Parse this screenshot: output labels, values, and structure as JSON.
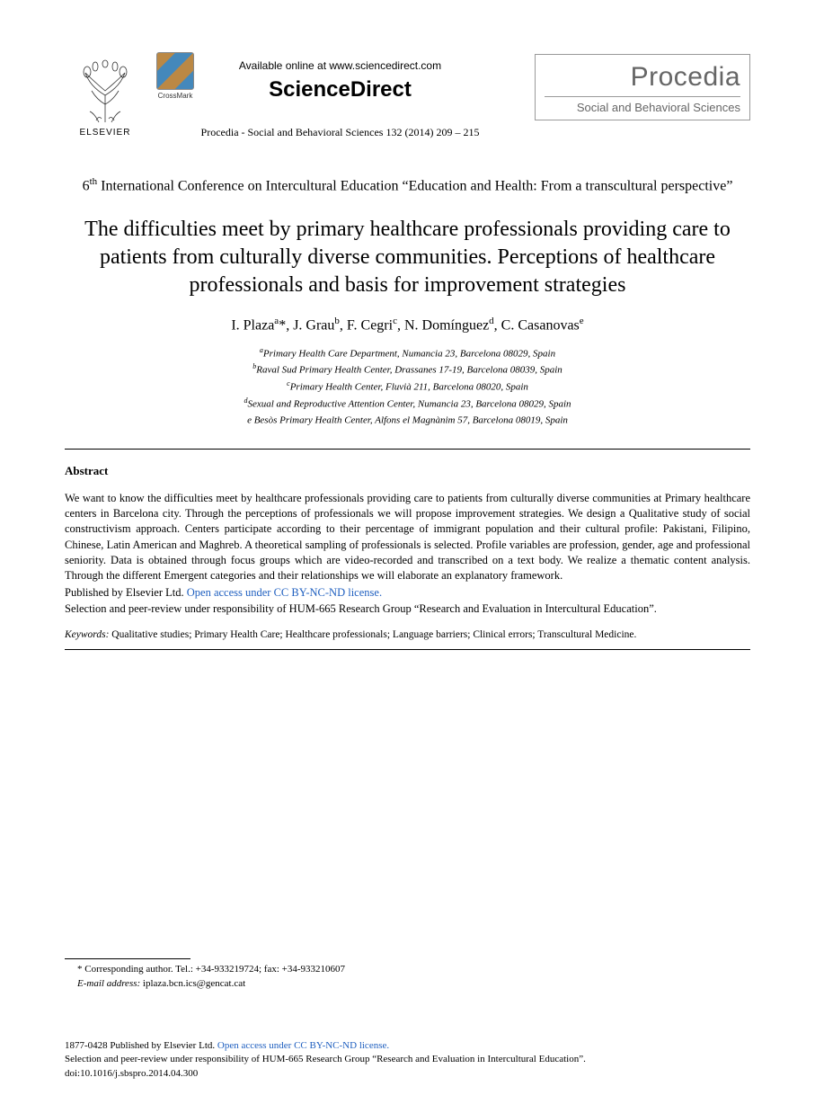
{
  "header": {
    "elsevier_label": "ELSEVIER",
    "crossmark_label": "CrossMark",
    "available_line": "Available online at www.sciencedirect.com",
    "sciencedirect": "ScienceDirect",
    "journal_ref": "Procedia - Social and Behavioral Sciences 132 (2014) 209 – 215",
    "procedia_title": "Procedia",
    "procedia_subtitle": "Social and Behavioral Sciences"
  },
  "conference": {
    "sup": "th",
    "prefix": "6",
    "text": " International Conference on Intercultural Education “Education and Health: From a transcultural perspective”"
  },
  "title": "The difficulties meet by primary healthcare professionals providing care to patients from culturally diverse communities. Perceptions of healthcare professionals and basis for improvement strategies",
  "authors_html": "I. Plaza<sup>a</sup>*, J. Grau<sup>b</sup>, F. Cegri<sup>c</sup>, N. Domínguez<sup>d</sup>, C. Casanovas<sup>e</sup>",
  "affiliations": [
    {
      "sup": "a",
      "text": "Primary Health Care Department, Numancia 23, Barcelona 08029, Spain"
    },
    {
      "sup": "b",
      "text": "Raval Sud Primary Health Center, Drassanes 17-19, Barcelona 08039, Spain"
    },
    {
      "sup": "c",
      "text": "Primary Health Center, Fluvià 211, Barcelona 08020, Spain"
    },
    {
      "sup": "d",
      "text": "Sexual and Reproductive Attention Center, Numancia 23, Barcelona 08029, Spain"
    },
    {
      "sup": "",
      "text": "e Besòs Primary Health Center, Alfons el Magnànim 57, Barcelona 08019, Spain"
    }
  ],
  "abstract": {
    "heading": "Abstract",
    "body": "We want to know the difficulties meet by healthcare professionals providing care to patients from culturally diverse communities at Primary healthcare centers in Barcelona city. Through the perceptions of professionals we will propose improvement strategies. We design a Qualitative study of social constructivism approach. Centers participate according to their percentage of immigrant population and their cultural profile: Pakistani, Filipino, Chinese, Latin American and Maghreb. A theoretical sampling of professionals is selected. Profile variables are profession, gender, age and professional seniority. Data is obtained through focus groups which are video-recorded and transcribed on a text body. We realize a thematic content analysis. Through the different Emergent categories and their relationships we will elaborate an explanatory framework.",
    "copyright_prefix": "Published by Elsevier Ltd. ",
    "open_access_text": "Open access under ",
    "cc_text": "CC BY-NC-ND license.",
    "selection": "Selection and peer-review under responsibility of HUM-665 Research Group “Research and Evaluation in Intercultural Education”."
  },
  "keywords": {
    "label": "Keywords:",
    "text": " Qualitative studies; Primary Health Care; Healthcare professionals; Language barriers; Clinical errors; Transcultural Medicine."
  },
  "footnote": {
    "corr": "* Corresponding author.  Tel.: +34-933219724; fax: +34-933210607",
    "email_label": "E-mail address:",
    "email": " iplaza.bcn.ics@gencat.cat"
  },
  "footer": {
    "line1_prefix": "1877-0428 Published by Elsevier Ltd. ",
    "open_access_text": "Open access under ",
    "cc_text": "CC BY-NC-ND license.",
    "line2": "Selection and peer-review under responsibility of HUM-665 Research Group “Research and Evaluation in Intercultural Education”.",
    "doi": "doi:10.1016/j.sbspro.2014.04.300"
  },
  "colors": {
    "link": "#2060c0",
    "text": "#000000",
    "procedia_gray": "#666666",
    "background": "#ffffff"
  }
}
